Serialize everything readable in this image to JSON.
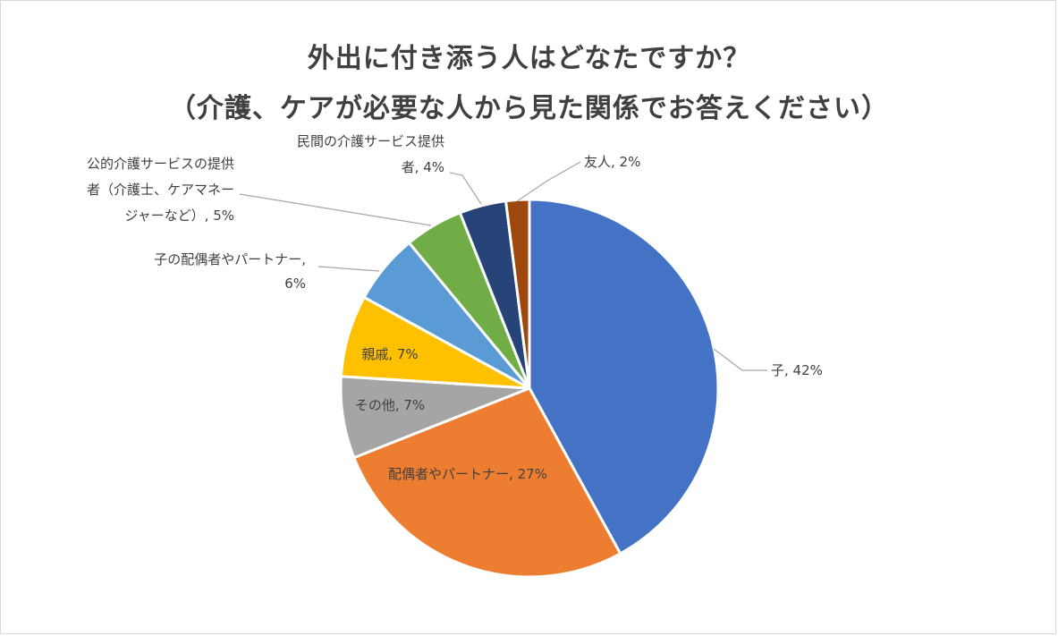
{
  "chart_data": {
    "type": "pie",
    "title": "外出に付き添う人はどなたですか？",
    "subtitle": "（介護、ケアが必要な人から見た関係でお答えください）",
    "slices": [
      {
        "label": "子",
        "value": 42,
        "color": "#4472c4",
        "label_lines": [
          "子, 42%"
        ]
      },
      {
        "label": "配偶者やパートナー",
        "value": 27,
        "color": "#ed7d31",
        "label_lines": [
          "配偶者やパートナー, 27%"
        ]
      },
      {
        "label": "その他",
        "value": 7,
        "color": "#a5a5a5",
        "label_lines": [
          "その他, 7%"
        ]
      },
      {
        "label": "親戚",
        "value": 7,
        "color": "#ffc000",
        "label_lines": [
          "親戚, 7%"
        ]
      },
      {
        "label": "子の配偶者やパートナー",
        "value": 6,
        "color": "#5b9bd5",
        "label_lines": [
          "子の配偶者やパートナー,",
          "6%"
        ]
      },
      {
        "label": "公的介護サービスの提供者（介護士、ケアマネージャーなど）",
        "value": 5,
        "color": "#70ad47",
        "label_lines": [
          "公的介護サービスの提供",
          "者（介護士、ケアマネー",
          "ジャーなど）, 5%"
        ]
      },
      {
        "label": "民間の介護サービス提供者",
        "value": 4,
        "color": "#264478",
        "label_lines": [
          "民間の介護サービス提供",
          "者, 4%"
        ]
      },
      {
        "label": "友人",
        "value": 2,
        "color": "#9e480e",
        "label_lines": [
          "友人, 2%"
        ]
      }
    ],
    "unit": "%"
  }
}
